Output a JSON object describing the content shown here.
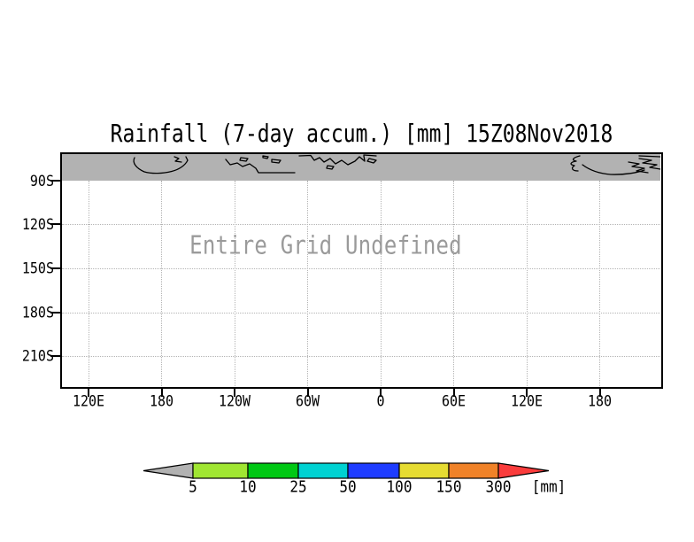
{
  "title": "Rainfall (7-day accum.) [mm] 15Z08Nov2018",
  "map": {
    "annotation": "Entire Grid Undefined",
    "band_color": "#b2b2b2",
    "coastline_color": "#000000"
  },
  "axes": {
    "y_ticks": [
      "90S",
      "120S",
      "150S",
      "180S",
      "210S"
    ],
    "x_ticks": [
      "120E",
      "180",
      "120W",
      "60W",
      "0",
      "60E",
      "120E",
      "180"
    ]
  },
  "colorbar": {
    "levels": [
      "5",
      "10",
      "25",
      "50",
      "100",
      "150",
      "300"
    ],
    "unit": "[mm]",
    "left_arrow_color": "#b2b2b2",
    "right_arrow_color": "#fa3c3c",
    "segment_colors": [
      "#a0e632",
      "#00c814",
      "#00d2d2",
      "#1e3cff",
      "#e6dc32",
      "#f08228"
    ]
  },
  "chart_data": {
    "type": "heatmap",
    "title": "Rainfall (7-day accum.) [mm] 15Z08Nov2018",
    "annotation": "Entire Grid Undefined",
    "x_tick_labels": [
      "120E",
      "180",
      "120W",
      "60W",
      "0",
      "60E",
      "120E",
      "180"
    ],
    "y_tick_labels": [
      "90S",
      "120S",
      "150S",
      "180S",
      "210S"
    ],
    "colorbar_levels": [
      5,
      10,
      25,
      50,
      100,
      150,
      300
    ],
    "colorbar_colors": [
      "#b2b2b2",
      "#a0e632",
      "#00c814",
      "#00d2d2",
      "#1e3cff",
      "#e6dc32",
      "#f08228",
      "#fa3c3c"
    ],
    "unit": "mm",
    "values": [],
    "grid": "dotted",
    "legend_position": "bottom"
  }
}
